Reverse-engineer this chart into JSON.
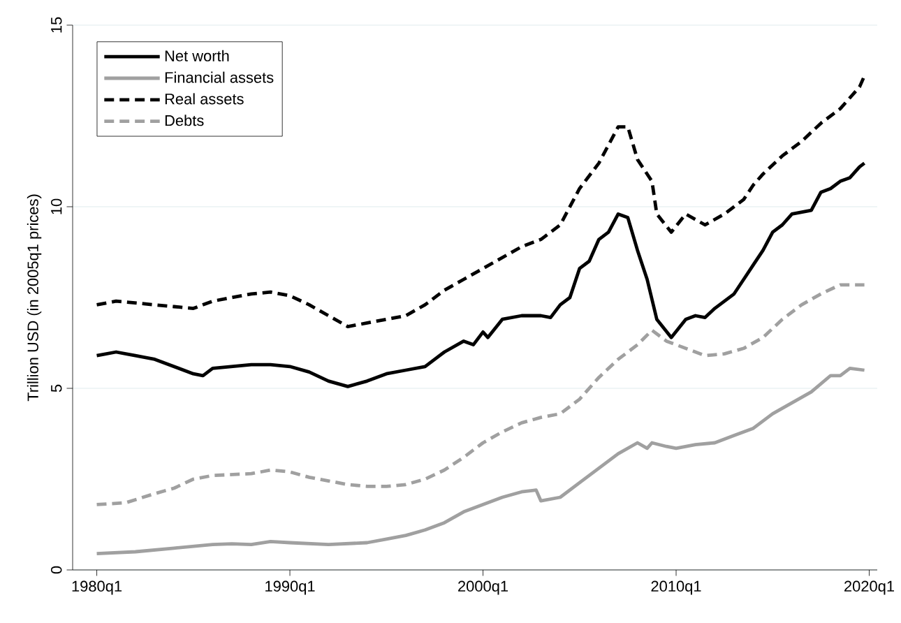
{
  "chart_data": {
    "type": "line",
    "ylabel": "Trillion USD (in 2005q1 prices)",
    "xlim": [
      "1978-10",
      "2020-06"
    ],
    "ylim": [
      0,
      15
    ],
    "xticks": [
      {
        "value": "1980-01",
        "label": "1980q1"
      },
      {
        "value": "1990-01",
        "label": "1990q1"
      },
      {
        "value": "2000-01",
        "label": "2000q1"
      },
      {
        "value": "2010-01",
        "label": "2010q1"
      },
      {
        "value": "2020-01",
        "label": "2020q1"
      }
    ],
    "yticks": [
      0,
      5,
      10,
      15
    ],
    "grid": "y",
    "legend": "top left",
    "series": [
      {
        "name": "Net worth",
        "color": "#000000",
        "line_style": "solid",
        "x": [
          "1980-01",
          "1981-01",
          "1982-01",
          "1983-01",
          "1984-01",
          "1985-01",
          "1985-07",
          "1986-01",
          "1987-01",
          "1988-01",
          "1989-01",
          "1990-01",
          "1991-01",
          "1992-01",
          "1993-01",
          "1994-01",
          "1995-01",
          "1996-01",
          "1997-01",
          "1998-01",
          "1999-01",
          "1999-07",
          "2000-01",
          "2000-04",
          "2001-01",
          "2002-01",
          "2003-01",
          "2003-07",
          "2004-01",
          "2004-07",
          "2005-01",
          "2005-07",
          "2006-01",
          "2006-07",
          "2007-01",
          "2007-07",
          "2008-01",
          "2008-07",
          "2009-01",
          "2009-10",
          "2010-07",
          "2011-01",
          "2011-07",
          "2012-01",
          "2013-01",
          "2013-07",
          "2014-01",
          "2014-07",
          "2015-01",
          "2015-07",
          "2016-01",
          "2017-01",
          "2017-07",
          "2018-01",
          "2018-07",
          "2019-01",
          "2019-07",
          "2019-10"
        ],
        "values": [
          5.9,
          6.0,
          5.9,
          5.8,
          5.6,
          5.4,
          5.35,
          5.55,
          5.6,
          5.65,
          5.65,
          5.6,
          5.45,
          5.2,
          5.05,
          5.2,
          5.4,
          5.5,
          5.6,
          6.0,
          6.3,
          6.2,
          6.55,
          6.4,
          6.9,
          7.0,
          7.0,
          6.95,
          7.3,
          7.5,
          8.3,
          8.5,
          9.1,
          9.3,
          9.8,
          9.7,
          8.8,
          8.0,
          6.9,
          6.4,
          6.9,
          7.0,
          6.95,
          7.2,
          7.6,
          8.0,
          8.4,
          8.8,
          9.3,
          9.5,
          9.8,
          9.9,
          10.4,
          10.5,
          10.7,
          10.8,
          11.1,
          11.2
        ]
      },
      {
        "name": "Financial assets",
        "color": "#a0a0a0",
        "line_style": "solid",
        "x": [
          "1980-01",
          "1982-01",
          "1984-01",
          "1986-01",
          "1987-01",
          "1988-01",
          "1989-01",
          "1990-01",
          "1992-01",
          "1994-01",
          "1995-01",
          "1996-01",
          "1997-01",
          "1998-01",
          "1999-01",
          "2000-01",
          "2001-01",
          "2002-01",
          "2002-10",
          "2003-01",
          "2004-01",
          "2005-01",
          "2006-01",
          "2007-01",
          "2008-01",
          "2008-07",
          "2008-10",
          "2009-07",
          "2010-01",
          "2011-01",
          "2012-01",
          "2013-01",
          "2014-01",
          "2015-01",
          "2016-01",
          "2017-01",
          "2018-01",
          "2018-07",
          "2019-01",
          "2019-10"
        ],
        "values": [
          0.45,
          0.5,
          0.6,
          0.7,
          0.72,
          0.7,
          0.78,
          0.75,
          0.7,
          0.75,
          0.85,
          0.95,
          1.1,
          1.3,
          1.6,
          1.8,
          2.0,
          2.15,
          2.2,
          1.9,
          2.0,
          2.4,
          2.8,
          3.2,
          3.5,
          3.35,
          3.5,
          3.4,
          3.35,
          3.45,
          3.5,
          3.7,
          3.9,
          4.3,
          4.6,
          4.9,
          5.35,
          5.35,
          5.55,
          5.5
        ]
      },
      {
        "name": "Real assets",
        "color": "#000000",
        "line_style": "dashed",
        "x": [
          "1980-01",
          "1981-01",
          "1982-01",
          "1983-01",
          "1984-01",
          "1985-01",
          "1986-01",
          "1987-01",
          "1988-01",
          "1989-01",
          "1990-01",
          "1991-01",
          "1992-01",
          "1993-01",
          "1994-01",
          "1995-01",
          "1996-01",
          "1997-01",
          "1998-01",
          "1999-01",
          "2000-01",
          "2001-01",
          "2002-01",
          "2003-01",
          "2004-01",
          "2005-01",
          "2006-01",
          "2007-01",
          "2007-07",
          "2008-01",
          "2008-10",
          "2009-01",
          "2009-10",
          "2010-07",
          "2011-07",
          "2012-07",
          "2013-07",
          "2014-01",
          "2014-07",
          "2015-07",
          "2016-07",
          "2017-07",
          "2018-07",
          "2019-07",
          "2019-10"
        ],
        "values": [
          7.3,
          7.4,
          7.35,
          7.3,
          7.25,
          7.2,
          7.4,
          7.5,
          7.6,
          7.65,
          7.55,
          7.3,
          7.0,
          6.7,
          6.8,
          6.9,
          7.0,
          7.3,
          7.7,
          8.0,
          8.3,
          8.6,
          8.9,
          9.1,
          9.5,
          10.5,
          11.2,
          12.2,
          12.2,
          11.3,
          10.7,
          9.8,
          9.3,
          9.8,
          9.5,
          9.8,
          10.2,
          10.6,
          10.9,
          11.4,
          11.8,
          12.3,
          12.7,
          13.3,
          13.6
        ]
      },
      {
        "name": "Debts",
        "color": "#a0a0a0",
        "line_style": "dashed",
        "x": [
          "1980-01",
          "1981-07",
          "1983-01",
          "1984-01",
          "1985-01",
          "1986-01",
          "1988-01",
          "1989-01",
          "1990-01",
          "1991-01",
          "1992-01",
          "1993-01",
          "1994-01",
          "1995-01",
          "1996-01",
          "1997-01",
          "1998-01",
          "1999-01",
          "2000-01",
          "2001-01",
          "2002-01",
          "2003-01",
          "2004-01",
          "2005-01",
          "2006-01",
          "2007-01",
          "2008-01",
          "2008-10",
          "2009-07",
          "2010-07",
          "2011-07",
          "2012-07",
          "2013-07",
          "2014-07",
          "2015-07",
          "2016-07",
          "2017-07",
          "2018-07",
          "2019-10"
        ],
        "values": [
          1.8,
          1.85,
          2.1,
          2.25,
          2.5,
          2.6,
          2.65,
          2.75,
          2.7,
          2.55,
          2.45,
          2.35,
          2.3,
          2.3,
          2.35,
          2.5,
          2.75,
          3.1,
          3.5,
          3.8,
          4.05,
          4.2,
          4.3,
          4.7,
          5.3,
          5.8,
          6.2,
          6.6,
          6.3,
          6.1,
          5.9,
          5.95,
          6.1,
          6.4,
          6.9,
          7.3,
          7.6,
          7.85,
          7.85
        ]
      }
    ]
  }
}
